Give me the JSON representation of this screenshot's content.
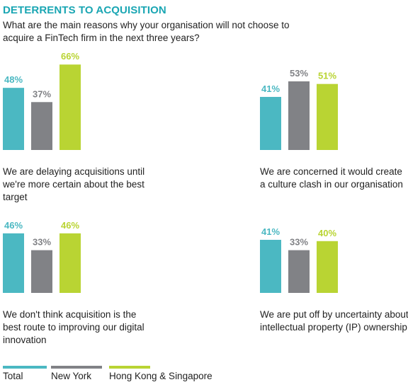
{
  "header": {
    "title": "DETERRENTS TO ACQUISITION",
    "question": "What are the main reasons why your organisation will not choose to acquire a FinTech firm in the next three years?"
  },
  "colors": {
    "heading": "#1aa6b3",
    "Total": "#4bb8c2",
    "New York": "#818286",
    "Hong Kong & Singapore": "#b9d433"
  },
  "chart_data": [
    {
      "type": "bar",
      "categories": [
        "Total",
        "New York",
        "Hong Kong & Singapore"
      ],
      "values": [
        48,
        37,
        66
      ],
      "data_labels": [
        "48%",
        "37%",
        "66%"
      ],
      "caption": "We are delaying acquisitions until we're more certain about the best target",
      "ylim": [
        0,
        70
      ],
      "grid": false
    },
    {
      "type": "bar",
      "categories": [
        "Total",
        "New York",
        "Hong Kong & Singapore"
      ],
      "values": [
        41,
        53,
        51
      ],
      "data_labels": [
        "41%",
        "53%",
        "51%"
      ],
      "caption": "We are concerned it would create a culture clash in our organisation",
      "ylim": [
        0,
        70
      ],
      "grid": false
    },
    {
      "type": "bar",
      "categories": [
        "Total",
        "New York",
        "Hong Kong & Singapore"
      ],
      "values": [
        46,
        33,
        46
      ],
      "data_labels": [
        "46%",
        "33%",
        "46%"
      ],
      "caption": "We don't think acquisition is the best route to improving our digital innovation",
      "ylim": [
        0,
        70
      ],
      "grid": false
    },
    {
      "type": "bar",
      "categories": [
        "Total",
        "New York",
        "Hong Kong & Singapore"
      ],
      "values": [
        41,
        33,
        40
      ],
      "data_labels": [
        "41%",
        "33%",
        "40%"
      ],
      "caption": "We are put off by uncertainty about intellectual property (IP) ownership",
      "ylim": [
        0,
        70
      ],
      "grid": false
    }
  ],
  "legend": {
    "placement": "bottom",
    "items": [
      "Total",
      "New York",
      "Hong Kong & Singapore"
    ]
  }
}
